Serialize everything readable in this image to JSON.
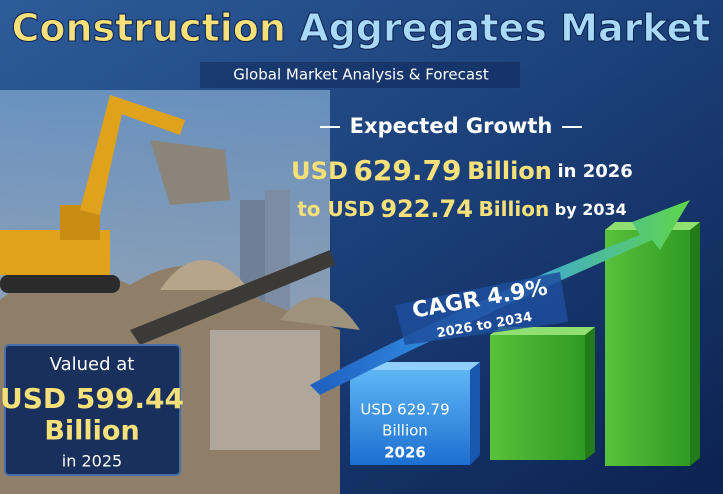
{
  "header": {
    "title_part1": "Construction",
    "title_part2": "Aggregates Market",
    "subtitle": "Global Market Analysis & Forecast"
  },
  "growth": {
    "heading": "Expected Growth",
    "line1": {
      "prefix": "USD",
      "value": "629.79",
      "unit": "Billion",
      "suffix": "in 2026"
    },
    "line2": {
      "prefix": "to USD",
      "value": "922.74",
      "unit": "Billion",
      "suffix": "by 2034"
    }
  },
  "cagr": {
    "label": "CAGR",
    "value": "4.9%",
    "period": "2026 to 2034"
  },
  "bar_label": {
    "amount": "USD 629.79",
    "unit": "Billion",
    "year": "2026"
  },
  "valued": {
    "intro": "Valued at",
    "amount": "USD 599.44",
    "unit": "Billion",
    "year": "in 2025"
  }
}
